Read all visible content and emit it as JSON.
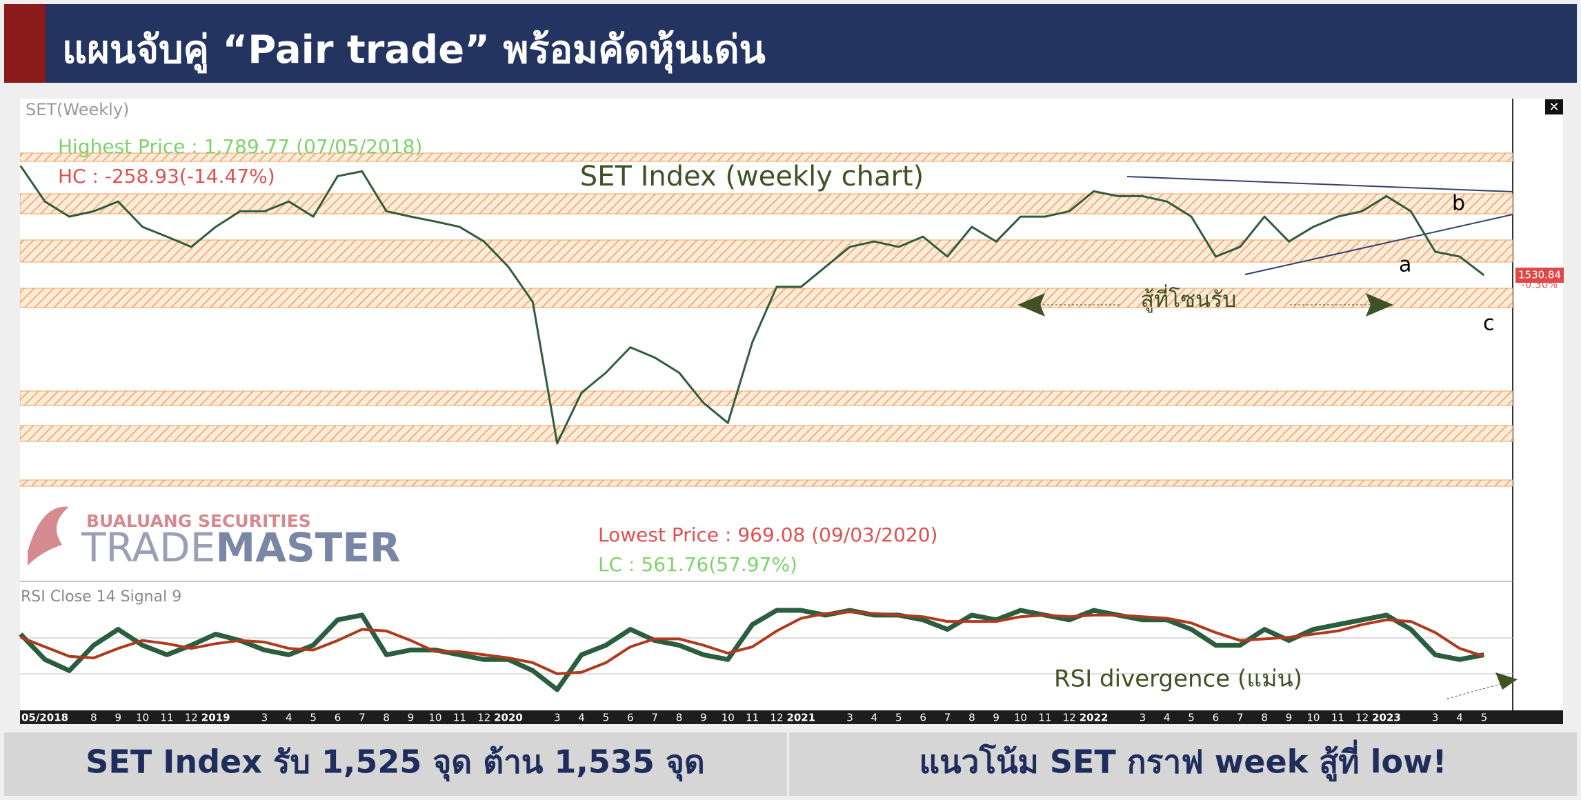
{
  "header": {
    "title": "แผนจับคู่ “Pair trade” พร้อมคัดหุ้นเด่น"
  },
  "chart_data": [
    {
      "type": "line",
      "title": "SET Index (weekly chart)",
      "label": "SET(Weekly)",
      "categories": [
        "05/2018",
        null,
        null,
        "8",
        "9",
        "10",
        "11",
        "12",
        "2019",
        null,
        "3",
        "4",
        "5",
        "6",
        "7",
        "8",
        "9",
        "10",
        "11",
        "12",
        "2020",
        null,
        "3",
        "4",
        "5",
        "6",
        "7",
        "8",
        "9",
        "10",
        "11",
        "12",
        "2021",
        null,
        "3",
        "4",
        "5",
        "6",
        "7",
        "8",
        "9",
        "10",
        "11",
        "12",
        "2022",
        null,
        "3",
        "4",
        "5",
        "6",
        "7",
        "8",
        "9",
        "10",
        "11",
        "12",
        "2023",
        null,
        "3",
        "4",
        "5"
      ],
      "series": [
        {
          "name": "SET(Weekly)",
          "color": "#2f5d3c",
          "values": [
            1755,
            1682,
            1651,
            1662,
            1682,
            1630,
            1610,
            1589,
            1630,
            1662,
            1662,
            1682,
            1651,
            1734,
            1744,
            1662,
            1651,
            1641,
            1630,
            1600,
            1548,
            1476,
            1186,
            1290,
            1331,
            1383,
            1362,
            1331,
            1269,
            1228,
            1393,
            1507,
            1507,
            1548,
            1589,
            1600,
            1589,
            1610,
            1569,
            1630,
            1600,
            1651,
            1651,
            1662,
            1703,
            1693,
            1693,
            1682,
            1651,
            1569,
            1589,
            1651,
            1600,
            1630,
            1651,
            1662,
            1693,
            1662,
            1579,
            1569,
            1530.84
          ]
        }
      ],
      "ylim": [
        903,
        1893
      ],
      "annotations": {
        "highest": "Highest Price : 1,789.77 (07/05/2018)",
        "hc": "HC : -258.93(-14.47%)",
        "lowest": "Lowest Price : 969.08 (09/03/2020)",
        "lc": "LC : 561.76(57.97%)",
        "zone": "สู้ที่โซนรับ",
        "a": "a",
        "b": "b",
        "c": "c",
        "change": "-0.30%"
      }
    },
    {
      "type": "line",
      "label": "RSI Close 14 Signal 9",
      "annotation": "RSI divergence (แม่น)",
      "ylim": [
        15,
        85
      ],
      "series": [
        {
          "name": "RSI Close 14",
          "color": "#2b5e3f",
          "values": [
            60,
            44,
            37,
            53,
            63,
            53,
            47,
            53,
            60,
            56,
            50,
            47,
            53,
            69,
            72,
            47,
            50,
            50,
            47,
            44,
            44,
            37,
            25,
            47,
            53,
            63,
            56,
            53,
            47,
            44,
            66,
            75,
            75,
            72,
            75,
            72,
            72,
            69,
            63,
            72,
            69,
            75,
            72,
            69,
            75,
            72,
            69,
            69,
            63,
            53,
            53,
            63,
            56,
            63,
            66,
            69,
            72,
            63,
            47,
            44,
            47
          ]
        },
        {
          "name": "Signal 9",
          "color": "#b03a1e",
          "values": [
            58,
            52,
            46,
            45,
            51,
            56,
            54,
            51,
            54,
            56,
            55,
            51,
            50,
            56,
            63,
            62,
            56,
            49,
            49,
            47,
            45,
            42,
            35,
            36,
            42,
            52,
            57,
            57,
            53,
            48,
            52,
            62,
            70,
            73,
            74,
            73,
            72,
            71,
            68,
            68,
            68,
            71,
            72,
            71,
            72,
            72,
            71,
            70,
            67,
            61,
            56,
            57,
            58,
            60,
            62,
            66,
            69,
            68,
            61,
            51,
            46
          ]
        }
      ]
    }
  ],
  "logo": {
    "brand": "BUALUANG SECURITIES",
    "trade": "TRADE",
    "master": "MASTER"
  },
  "footer": {
    "left": "SET Index รับ 1,525 จุด ต้าน 1,535 จุด",
    "right": "แนวโน้ม SET กราฟ week สู้ที่ low!"
  }
}
